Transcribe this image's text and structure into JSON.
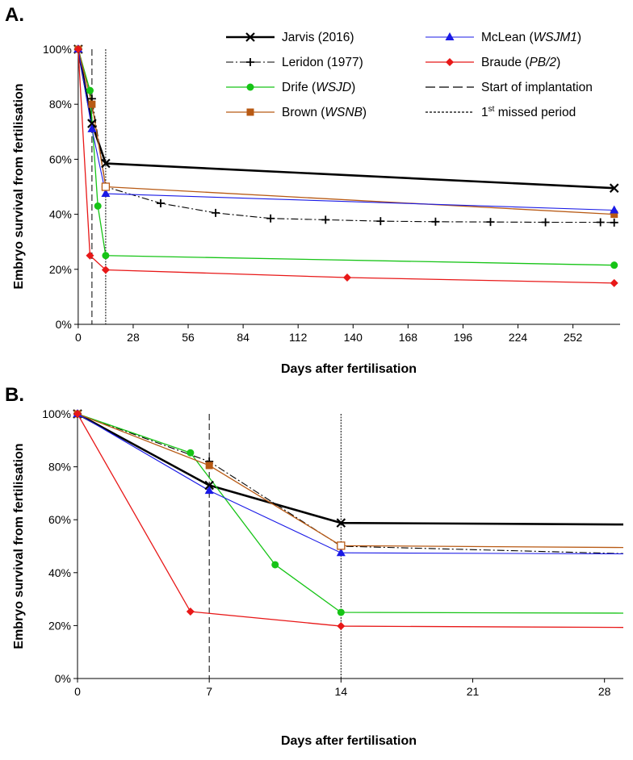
{
  "figure": {
    "legend_entries": [
      {
        "key": "jarvis",
        "name": "Jarvis (2016)",
        "parts": [
          {
            "t": "Jarvis (2016)",
            "i": false
          }
        ]
      },
      {
        "key": "leridon",
        "name": "Leridon (1977)",
        "parts": [
          {
            "t": "Leridon (1977)",
            "i": false
          }
        ]
      },
      {
        "key": "drife",
        "name": "Drife (WSJD)",
        "parts": [
          {
            "t": "Drife (",
            "i": false
          },
          {
            "t": "WSJD",
            "i": true
          },
          {
            "t": ")",
            "i": false
          }
        ]
      },
      {
        "key": "brown",
        "name": "Brown (WSNB)",
        "parts": [
          {
            "t": "Brown (",
            "i": false
          },
          {
            "t": "WSNB",
            "i": true
          },
          {
            "t": ")",
            "i": false
          }
        ]
      },
      {
        "key": "mclean",
        "name": "McLean (WSJM1)",
        "parts": [
          {
            "t": "McLean (",
            "i": false
          },
          {
            "t": "WSJM1",
            "i": true
          },
          {
            "t": ")",
            "i": false
          }
        ]
      },
      {
        "key": "braude",
        "name": "Braude (PB/2)",
        "parts": [
          {
            "t": "Braude (",
            "i": false
          },
          {
            "t": "PB/2",
            "i": true
          },
          {
            "t": ")",
            "i": false
          }
        ]
      },
      {
        "key": "implantation",
        "name": "Start of implantation",
        "parts": [
          {
            "t": "Start of implantation",
            "i": false
          }
        ]
      },
      {
        "key": "missed",
        "name": "1st missed period",
        "parts": [
          {
            "t": "1",
            "i": false
          },
          {
            "t": "st",
            "sup": true
          },
          {
            "t": " missed period",
            "i": false
          }
        ]
      }
    ]
  },
  "chart_data": [
    {
      "panel": "A.",
      "type": "line",
      "xlabel": "Days after fertilisation",
      "ylabel": "Embryo survival from fertilisation",
      "xlim": [
        -2,
        276
      ],
      "ylim": [
        0,
        100
      ],
      "x_ticks": [
        0,
        28,
        56,
        84,
        112,
        140,
        168,
        196,
        224,
        252
      ],
      "y_ticks": [
        0,
        20,
        40,
        60,
        80,
        100
      ],
      "y_tick_labels": [
        "0%",
        "20%",
        "40%",
        "60%",
        "80%",
        "100%"
      ],
      "vlines": [
        {
          "key": "implantation",
          "x": 7,
          "style": "dashed"
        },
        {
          "key": "missed",
          "x": 14,
          "style": "dotted"
        }
      ],
      "series": [
        {
          "key": "jarvis",
          "name": "Jarvis (2016)",
          "color": "#000000",
          "marker": "x",
          "dash": "",
          "width": 2.6,
          "x": [
            0,
            7,
            14,
            273
          ],
          "y": [
            100,
            73,
            58.5,
            49.5
          ]
        },
        {
          "key": "leridon",
          "name": "Leridon (1977)",
          "color": "#000000",
          "marker": "plus",
          "dash": "9,3,2,3",
          "width": 1.1,
          "x": [
            0,
            7,
            14,
            42,
            70,
            98,
            126,
            154,
            182,
            210,
            238,
            266,
            273
          ],
          "y": [
            100,
            82,
            50,
            44,
            40.5,
            38.5,
            38,
            37.5,
            37.3,
            37.2,
            37.1,
            37.1,
            37
          ]
        },
        {
          "key": "drife",
          "name": "Drife (WSJD)",
          "color": "#16c416",
          "marker": "circle",
          "dash": "",
          "width": 1.3,
          "x": [
            0,
            6,
            10,
            14,
            273
          ],
          "y": [
            100,
            85,
            43,
            25,
            21.5
          ]
        },
        {
          "key": "brown",
          "name": "Brown (WSNB)",
          "color": "#b85a14",
          "marker": "square",
          "dash": "",
          "width": 1.3,
          "x": [
            0,
            7,
            14,
            273
          ],
          "y": [
            100,
            80,
            50,
            40
          ]
        },
        {
          "key": "mclean",
          "name": "McLean (WSJM1)",
          "color": "#1a1ae6",
          "marker": "triangle",
          "dash": "",
          "width": 1.1,
          "x": [
            0,
            7,
            14,
            273
          ],
          "y": [
            100,
            71,
            47.5,
            41.5
          ]
        },
        {
          "key": "braude",
          "name": "Braude (PB/2)",
          "color": "#e81818",
          "marker": "diamond",
          "dash": "",
          "width": 1.3,
          "x": [
            0,
            6,
            14,
            137,
            273
          ],
          "y": [
            100,
            25,
            19.8,
            17,
            15
          ]
        }
      ]
    },
    {
      "panel": "B.",
      "type": "line",
      "xlabel": "Days after fertilisation",
      "ylabel": "Embryo survival from fertilisation",
      "xlim": [
        0,
        29
      ],
      "ylim": [
        0,
        100
      ],
      "x_ticks": [
        0,
        7,
        14,
        21,
        28
      ],
      "y_ticks": [
        0,
        20,
        40,
        60,
        80,
        100
      ],
      "y_tick_labels": [
        "0%",
        "20%",
        "40%",
        "60%",
        "80%",
        "100%"
      ],
      "vlines": [
        {
          "key": "implantation",
          "x": 7,
          "style": "dashed"
        },
        {
          "key": "missed",
          "x": 14,
          "style": "dotted"
        }
      ],
      "series": [
        {
          "key": "jarvis",
          "name": "Jarvis (2016)",
          "color": "#000000",
          "marker": "x",
          "dash": "",
          "width": 2.6,
          "x": [
            0,
            7,
            14,
            29
          ],
          "y": [
            100,
            73,
            58.8,
            58.2
          ],
          "mark": [
            1,
            1,
            1,
            0
          ]
        },
        {
          "key": "leridon",
          "name": "Leridon (1977)",
          "color": "#000000",
          "marker": "plus",
          "dash": "9,3,2,3",
          "width": 1.1,
          "x": [
            0,
            7,
            14,
            29
          ],
          "y": [
            100,
            82,
            50,
            47.2
          ],
          "mark": [
            1,
            1,
            0,
            0
          ]
        },
        {
          "key": "drife",
          "name": "Drife (WSJD)",
          "color": "#16c416",
          "marker": "circle",
          "dash": "",
          "width": 1.3,
          "x": [
            0,
            6,
            10.5,
            14,
            29
          ],
          "y": [
            100,
            85.3,
            43,
            25,
            24.7
          ],
          "mark": [
            1,
            1,
            1,
            1,
            0
          ]
        },
        {
          "key": "brown",
          "name": "Brown (WSNB)",
          "color": "#b85a14",
          "marker": "square",
          "dash": "",
          "width": 1.3,
          "x": [
            0,
            7,
            14,
            29
          ],
          "y": [
            100,
            80.5,
            50.2,
            49.5
          ],
          "mark": [
            1,
            1,
            1,
            0
          ]
        },
        {
          "key": "mclean",
          "name": "McLean (WSJM1)",
          "color": "#1a1ae6",
          "marker": "triangle",
          "dash": "",
          "width": 1.1,
          "x": [
            0,
            7,
            14,
            29
          ],
          "y": [
            100,
            71,
            47.5,
            47.1
          ],
          "mark": [
            1,
            1,
            1,
            0
          ]
        },
        {
          "key": "braude",
          "name": "Braude (PB/2)",
          "color": "#e81818",
          "marker": "diamond",
          "dash": "",
          "width": 1.3,
          "x": [
            0,
            6,
            14,
            29
          ],
          "y": [
            100,
            25.3,
            19.8,
            19.3
          ],
          "mark": [
            1,
            1,
            1,
            0
          ]
        }
      ]
    }
  ]
}
